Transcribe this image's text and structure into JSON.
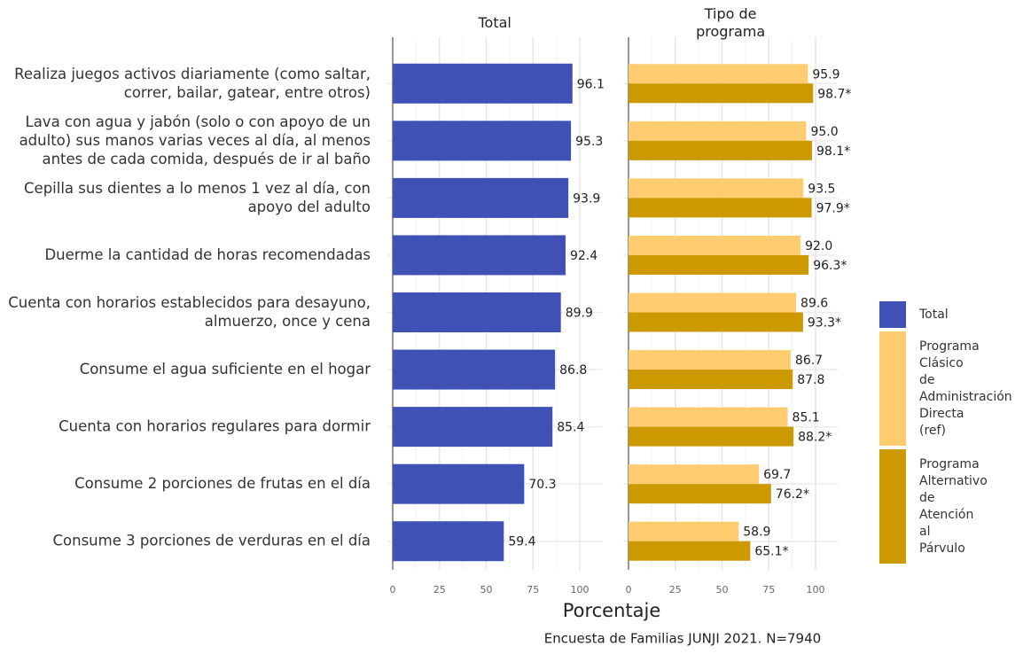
{
  "chart_data": [
    {
      "type": "bar",
      "orientation": "horizontal",
      "title": "Total",
      "categories": [
        "Realiza juegos activos diariamente (como saltar,\ncorrer, bailar, gatear, entre otros)",
        "Lava con agua y jabón (solo o con apoyo de un\nadulto) sus manos varias veces al día, al menos\nantes de cada comida, después de ir al baño",
        "Cepilla sus dientes a lo menos 1 vez al día, con\napoyo del adulto",
        "Duerme la cantidad de horas recomendadas",
        "Cuenta con horarios establecidos para desayuno,\nalmuerzo, once y cena",
        "Consume el agua suficiente en el hogar",
        "Cuenta con horarios regulares para dormir",
        "Consume 2 porciones de frutas en el día",
        "Consume 3 porciones de verduras en el día"
      ],
      "series": [
        {
          "name": "Total",
          "color": "#3f51b5",
          "values": [
            96.1,
            95.3,
            93.9,
            92.4,
            89.9,
            86.8,
            85.4,
            70.3,
            59.4
          ],
          "value_labels": [
            "96.1",
            "95.3",
            "93.9",
            "92.4",
            "89.9",
            "86.8",
            "85.4",
            "70.3",
            "59.4"
          ]
        }
      ],
      "xlim": [
        0,
        112
      ],
      "xticks": [
        0,
        25,
        50,
        75,
        100
      ],
      "grid": true
    },
    {
      "type": "bar",
      "orientation": "horizontal",
      "title": "Tipo de\nprograma",
      "series": [
        {
          "name": "Programa Clásico de Administración Directa (ref)",
          "color": "#ffcc70",
          "values": [
            95.9,
            95.0,
            93.5,
            92.0,
            89.6,
            86.7,
            85.1,
            69.7,
            58.9
          ],
          "value_labels": [
            "95.9",
            "95.0",
            "93.5",
            "92.0",
            "89.6",
            "86.7",
            "85.1",
            "69.7",
            "58.9"
          ]
        },
        {
          "name": "Programa Alternativo de Atención al Párvulo",
          "color": "#cc9900",
          "values": [
            98.7,
            98.1,
            97.9,
            96.3,
            93.3,
            87.8,
            88.2,
            76.2,
            65.1
          ],
          "value_labels": [
            "98.7*",
            "98.1*",
            "97.9*",
            "96.3*",
            "93.3*",
            "87.8",
            "88.2*",
            "76.2*",
            "65.1*"
          ]
        }
      ],
      "xlim": [
        0,
        112
      ],
      "xticks": [
        0,
        25,
        50,
        75,
        100
      ],
      "grid": true
    }
  ],
  "xlabel": "Porcentaje",
  "caption": "Encuesta de Familias JUNJI 2021. N=7940"
}
